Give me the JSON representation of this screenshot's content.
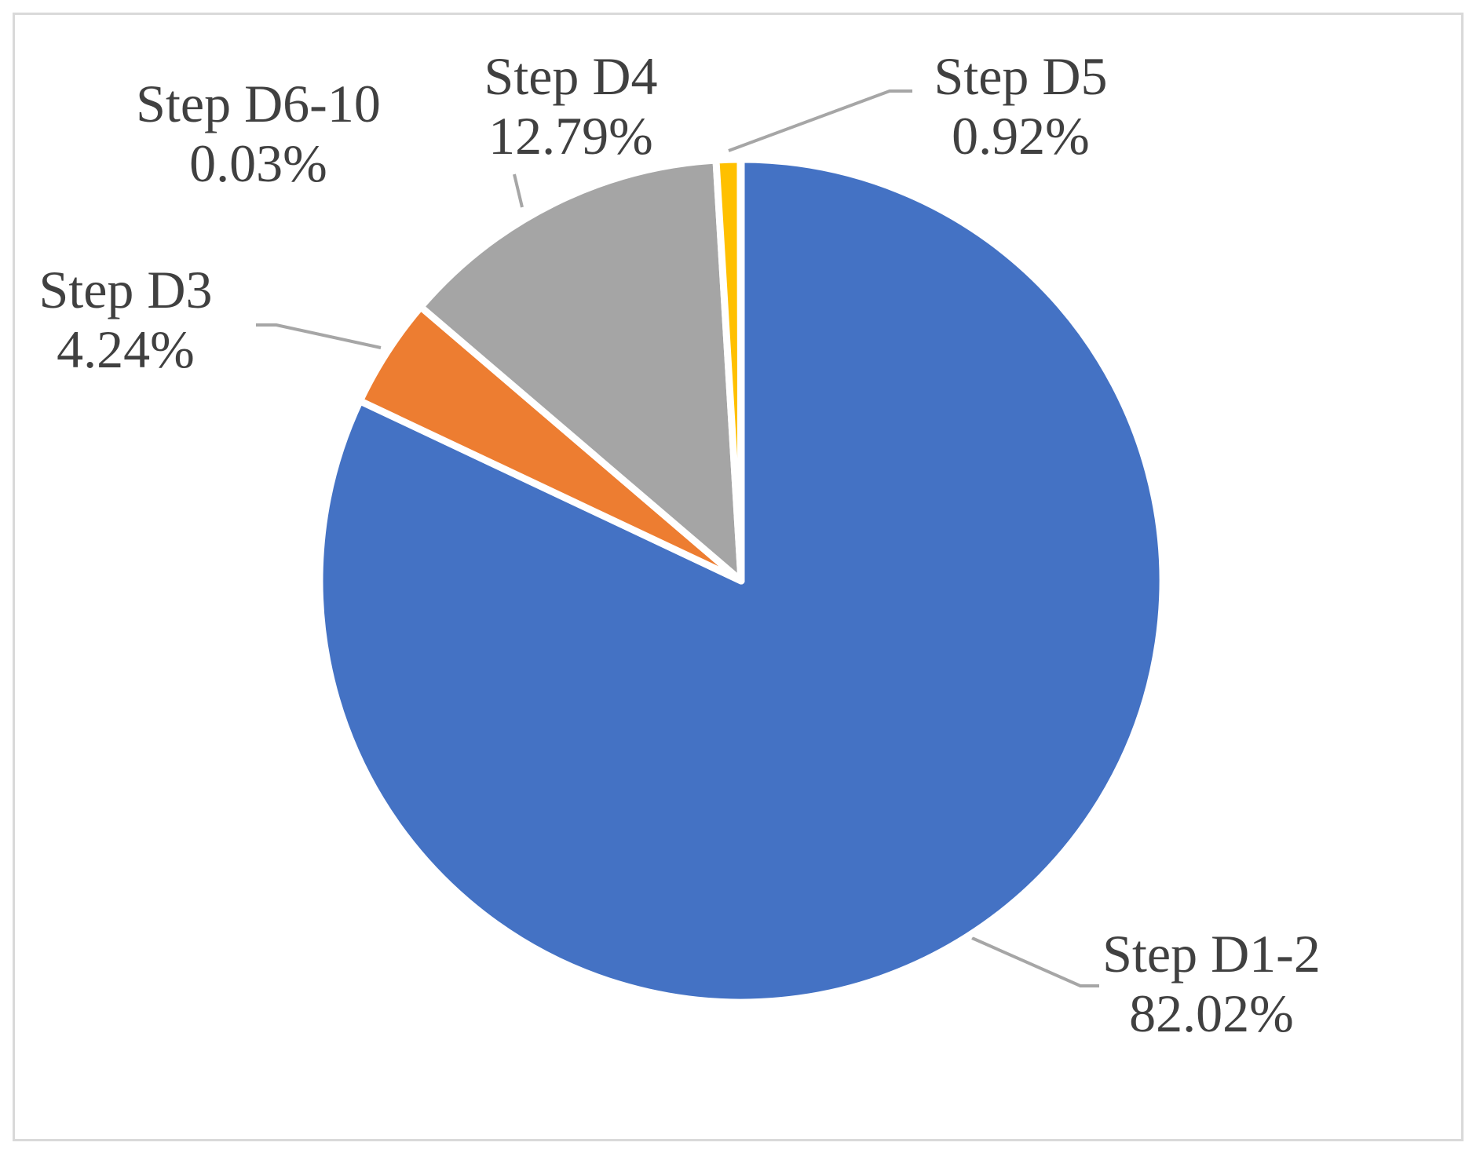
{
  "chart_data": {
    "type": "pie",
    "title": "",
    "start_angle_deg": 0,
    "direction": "clockwise",
    "legend": "none",
    "slices": [
      {
        "label": "Step D1-2",
        "value": 82.02,
        "display": "82.02%",
        "color": "#4472C4"
      },
      {
        "label": "Step D3",
        "value": 4.24,
        "display": "4.24%",
        "color": "#ED7D31"
      },
      {
        "label": "Step D4",
        "value": 12.79,
        "display": "12.79%",
        "color": "#A5A5A5"
      },
      {
        "label": "Step D5",
        "value": 0.92,
        "display": "0.92%",
        "color": "#FFC000"
      },
      {
        "label": "Step D6-10",
        "value": 0.03,
        "display": "0.03%",
        "color": "#5B9BD5"
      }
    ]
  }
}
